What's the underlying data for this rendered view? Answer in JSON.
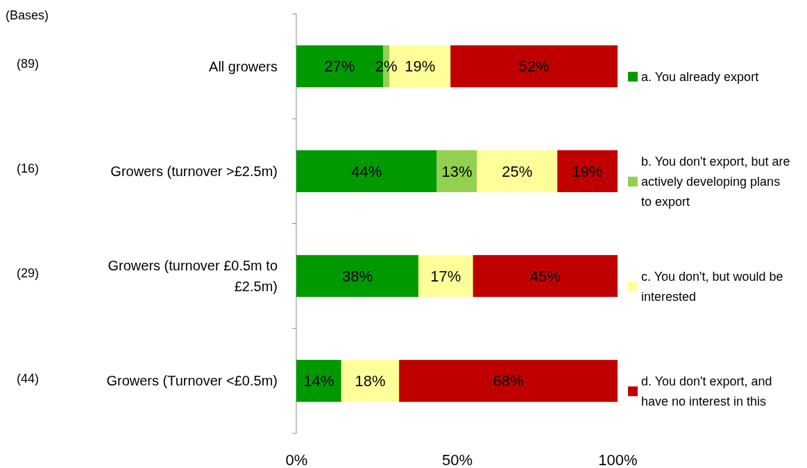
{
  "chart_data": {
    "type": "bar",
    "orientation": "horizontal",
    "stacked": true,
    "categories": [
      "All growers",
      "Growers (turnover >£2.5m)",
      "Growers (turnover £0.5m to £2.5m)",
      "Growers (Turnover <£0.5m)"
    ],
    "series": [
      {
        "name": "a. You already export",
        "color": "#009900",
        "values": [
          27,
          43.75,
          38,
          14
        ],
        "value_labels": [
          "27%",
          "44%",
          "38%",
          "14%"
        ]
      },
      {
        "name": "b. You don't export, but are actively developing plans to export",
        "color": "#92d050",
        "values": [
          2,
          12.5,
          null,
          null
        ],
        "value_labels": [
          "2%",
          "13%",
          null,
          null
        ]
      },
      {
        "name": "c. You don't, but would be interested",
        "color": "#ffff99",
        "values": [
          19,
          25,
          17,
          18
        ],
        "value_labels": [
          "19%",
          "25%",
          "17%",
          "18%"
        ]
      },
      {
        "name": "d. You don't export, and have no interest in this",
        "color": "#c00000",
        "values": [
          52,
          18.75,
          45,
          68
        ],
        "value_labels": [
          "52%",
          "19%",
          "45%",
          "68%"
        ]
      }
    ],
    "xlim": [
      0,
      100
    ],
    "xticks": [
      {
        "value": 0,
        "label": "0%"
      },
      {
        "value": 50,
        "label": "50%"
      },
      {
        "value": 100,
        "label": "100%"
      }
    ],
    "legend": "right",
    "annotations": [
      "(Bases)",
      "(89)",
      "(16)",
      "(29)",
      "(44)"
    ]
  }
}
